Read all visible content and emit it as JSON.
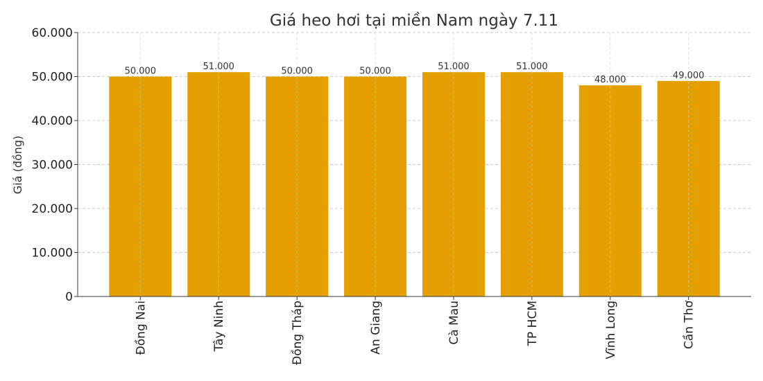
{
  "chart_data": {
    "type": "bar",
    "title": "Giá heo hơi tại miền Nam ngày 7.11",
    "xlabel": "",
    "ylabel": "Giá (đồng)",
    "categories": [
      "Đồng Nai",
      "Tây Ninh",
      "Đồng Tháp",
      "An Giang",
      "Cà Mau",
      "TP HCM",
      "Vĩnh Long",
      "Cần Thơ"
    ],
    "values": [
      50000,
      51000,
      50000,
      50000,
      51000,
      51000,
      48000,
      49000
    ],
    "data_labels": [
      "50.000",
      "51.000",
      "50.000",
      "50.000",
      "51.000",
      "51.000",
      "48.000",
      "49.000"
    ],
    "ylim": [
      0,
      60000
    ],
    "yticks": [
      0,
      10000,
      20000,
      30000,
      40000,
      50000,
      60000
    ],
    "ytick_labels": [
      "0",
      "10.000",
      "20.000",
      "30.000",
      "40.000",
      "50.000",
      "60.000"
    ],
    "grid": true,
    "bar_color": "#E3A000"
  }
}
